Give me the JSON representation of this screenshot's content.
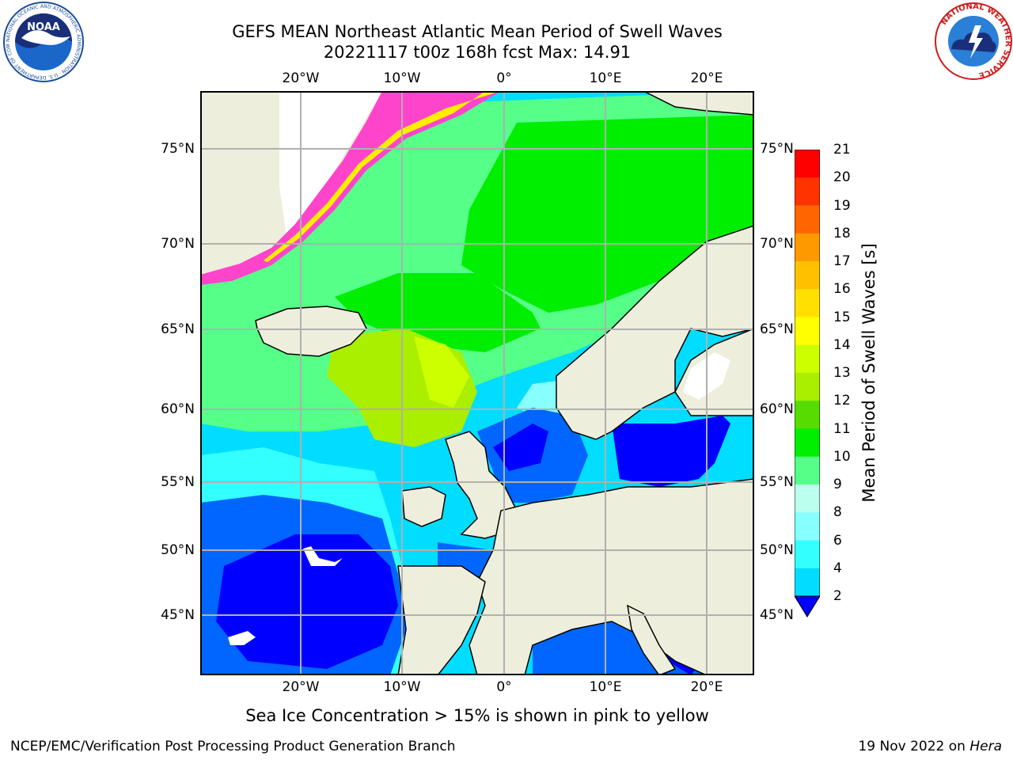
{
  "title": {
    "line1": "GEFS MEAN Northeast Atlantic Mean Period of Swell Waves",
    "line2": "20221117 t00z 168h fcst   Max: 14.91"
  },
  "axes": {
    "longitude_labels": [
      "20°W",
      "10°W",
      "0°",
      "10°E",
      "20°E"
    ],
    "latitude_labels": [
      "75°N",
      "70°N",
      "65°N",
      "60°N",
      "55°N",
      "50°N",
      "45°N"
    ]
  },
  "colorbar": {
    "label": "Mean Period of Swell Waves [s]",
    "ticks": [
      "2",
      "4",
      "6",
      "8",
      "9",
      "10",
      "11",
      "12",
      "13",
      "14",
      "15",
      "16",
      "17",
      "18",
      "19",
      "20",
      "21"
    ],
    "colors": [
      "#0066ff",
      "#00ddff",
      "#33ffff",
      "#88ffff",
      "#bbffee",
      "#55ff88",
      "#00ee00",
      "#55dd00",
      "#aaee00",
      "#ccff00",
      "#ffff00",
      "#ffe000",
      "#ffc000",
      "#ff9900",
      "#ff6600",
      "#ff3300",
      "#ff0000"
    ],
    "extend_color": "#0000ff"
  },
  "colors": {
    "land": "#eeeedc",
    "ice": "#ffffff",
    "deep_blue": "#0000ff",
    "grid": "#b0b0b0"
  },
  "note": "Sea Ice Concentration > 15% is shown in pink to yellow",
  "footer": {
    "left": "NCEP/EMC/Verification Post Processing Product Generation Branch",
    "date": "19 Nov 2022 on ",
    "host": "Hera"
  },
  "logos": {
    "noaa_text": "NOAA",
    "noaa_ring_text": "NATIONAL OCEANIC AND ATMOSPHERIC ADMINISTRATION · U.S. DEPARTMENT OF COMMERCE",
    "nws_ring_text": "NATIONAL WEATHER SERVICE"
  }
}
